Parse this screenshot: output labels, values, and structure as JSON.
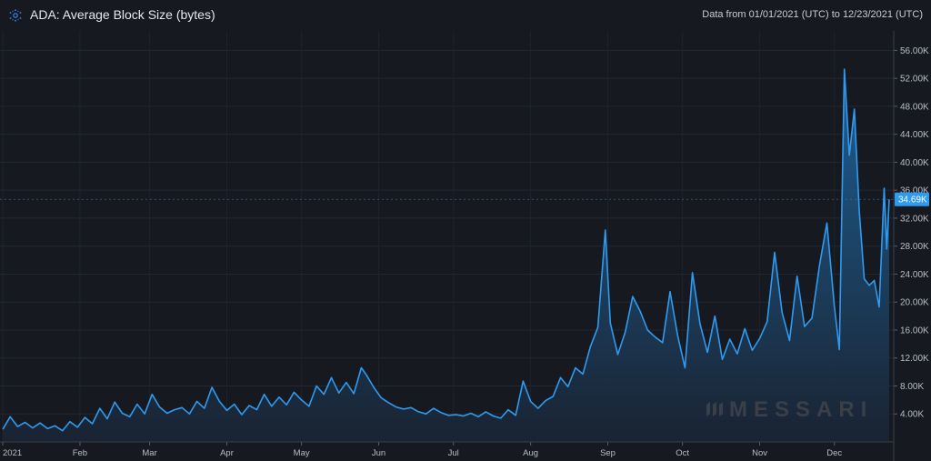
{
  "header": {
    "title": "ADA: Average Block Size (bytes)",
    "date_range": "Data from 01/01/2021 (UTC) to 12/23/2021 (UTC)",
    "logo_icon": "cardano-logo-icon"
  },
  "watermark": {
    "text": "MESSARI",
    "icon": "messari-logo-icon"
  },
  "chart_data": {
    "type": "area",
    "title": "ADA: Average Block Size (bytes)",
    "xlabel": "",
    "ylabel": "",
    "ylim": [
      0,
      58000
    ],
    "xlim": [
      "2021-01-01",
      "2021-12-23"
    ],
    "grid": true,
    "y_axis_position": "right",
    "line_color": "#2f9bf0",
    "fill_color_top": "#1d5f94",
    "fill_color_bottom": "#1a2433",
    "y_ticks": [
      {
        "value": 4000,
        "label": "4.00K"
      },
      {
        "value": 8000,
        "label": "8.00K"
      },
      {
        "value": 12000,
        "label": "12.00K"
      },
      {
        "value": 16000,
        "label": "16.00K"
      },
      {
        "value": 20000,
        "label": "20.00K"
      },
      {
        "value": 24000,
        "label": "24.00K"
      },
      {
        "value": 28000,
        "label": "28.00K"
      },
      {
        "value": 32000,
        "label": "32.00K"
      },
      {
        "value": 36000,
        "label": "36.00K"
      },
      {
        "value": 40000,
        "label": "40.00K"
      },
      {
        "value": 44000,
        "label": "44.00K"
      },
      {
        "value": 48000,
        "label": "48.00K"
      },
      {
        "value": 52000,
        "label": "52.00K"
      },
      {
        "value": 56000,
        "label": "56.00K"
      }
    ],
    "x_ticks": [
      {
        "date": "2021-01-01",
        "label": "2021"
      },
      {
        "date": "2021-02-01",
        "label": "Feb"
      },
      {
        "date": "2021-03-01",
        "label": "Mar"
      },
      {
        "date": "2021-04-01",
        "label": "Apr"
      },
      {
        "date": "2021-05-01",
        "label": "May"
      },
      {
        "date": "2021-06-01",
        "label": "Jun"
      },
      {
        "date": "2021-07-01",
        "label": "Jul"
      },
      {
        "date": "2021-08-01",
        "label": "Aug"
      },
      {
        "date": "2021-09-01",
        "label": "Sep"
      },
      {
        "date": "2021-10-01",
        "label": "Oct"
      },
      {
        "date": "2021-11-01",
        "label": "Nov"
      },
      {
        "date": "2021-12-01",
        "label": "Dec"
      }
    ],
    "last_value": {
      "value": 34690,
      "label": "34.69K"
    },
    "series": [
      {
        "values": [
          [
            "2021-01-01",
            1800
          ],
          [
            "2021-01-04",
            3600
          ],
          [
            "2021-01-07",
            2200
          ],
          [
            "2021-01-10",
            2800
          ],
          [
            "2021-01-13",
            2000
          ],
          [
            "2021-01-16",
            2700
          ],
          [
            "2021-01-19",
            1900
          ],
          [
            "2021-01-22",
            2300
          ],
          [
            "2021-01-25",
            1600
          ],
          [
            "2021-01-28",
            2900
          ],
          [
            "2021-01-31",
            2100
          ],
          [
            "2021-02-03",
            3500
          ],
          [
            "2021-02-06",
            2600
          ],
          [
            "2021-02-09",
            4800
          ],
          [
            "2021-02-12",
            3300
          ],
          [
            "2021-02-15",
            5700
          ],
          [
            "2021-02-18",
            4100
          ],
          [
            "2021-02-21",
            3600
          ],
          [
            "2021-02-24",
            5400
          ],
          [
            "2021-02-27",
            4000
          ],
          [
            "2021-03-02",
            6800
          ],
          [
            "2021-03-05",
            5000
          ],
          [
            "2021-03-08",
            4100
          ],
          [
            "2021-03-11",
            4600
          ],
          [
            "2021-03-14",
            4900
          ],
          [
            "2021-03-17",
            4000
          ],
          [
            "2021-03-20",
            5800
          ],
          [
            "2021-03-23",
            4800
          ],
          [
            "2021-03-26",
            7800
          ],
          [
            "2021-03-29",
            5800
          ],
          [
            "2021-04-01",
            4500
          ],
          [
            "2021-04-04",
            5400
          ],
          [
            "2021-04-07",
            3900
          ],
          [
            "2021-04-10",
            5200
          ],
          [
            "2021-04-13",
            4600
          ],
          [
            "2021-04-16",
            6800
          ],
          [
            "2021-04-19",
            5100
          ],
          [
            "2021-04-22",
            6400
          ],
          [
            "2021-04-25",
            5300
          ],
          [
            "2021-04-28",
            7100
          ],
          [
            "2021-05-01",
            6000
          ],
          [
            "2021-05-04",
            5100
          ],
          [
            "2021-05-07",
            8000
          ],
          [
            "2021-05-10",
            6800
          ],
          [
            "2021-05-13",
            9200
          ],
          [
            "2021-05-16",
            7000
          ],
          [
            "2021-05-19",
            8500
          ],
          [
            "2021-05-22",
            6900
          ],
          [
            "2021-05-25",
            10600
          ],
          [
            "2021-05-27",
            9600
          ],
          [
            "2021-05-30",
            7800
          ],
          [
            "2021-06-02",
            6300
          ],
          [
            "2021-06-05",
            5600
          ],
          [
            "2021-06-08",
            5000
          ],
          [
            "2021-06-11",
            4700
          ],
          [
            "2021-06-14",
            4900
          ],
          [
            "2021-06-17",
            4300
          ],
          [
            "2021-06-20",
            4000
          ],
          [
            "2021-06-23",
            4800
          ],
          [
            "2021-06-26",
            4200
          ],
          [
            "2021-06-29",
            3800
          ],
          [
            "2021-07-02",
            3900
          ],
          [
            "2021-07-05",
            3700
          ],
          [
            "2021-07-08",
            4100
          ],
          [
            "2021-07-11",
            3600
          ],
          [
            "2021-07-14",
            4300
          ],
          [
            "2021-07-17",
            3700
          ],
          [
            "2021-07-20",
            3400
          ],
          [
            "2021-07-23",
            4600
          ],
          [
            "2021-07-26",
            3800
          ],
          [
            "2021-07-29",
            8700
          ],
          [
            "2021-08-01",
            5800
          ],
          [
            "2021-08-04",
            4800
          ],
          [
            "2021-08-07",
            5900
          ],
          [
            "2021-08-10",
            6500
          ],
          [
            "2021-08-13",
            9200
          ],
          [
            "2021-08-16",
            7900
          ],
          [
            "2021-08-19",
            10600
          ],
          [
            "2021-08-22",
            9700
          ],
          [
            "2021-08-25",
            13600
          ],
          [
            "2021-08-28",
            16400
          ],
          [
            "2021-08-31",
            30300
          ],
          [
            "2021-09-02",
            17000
          ],
          [
            "2021-09-05",
            12500
          ],
          [
            "2021-09-08",
            15700
          ],
          [
            "2021-09-11",
            20800
          ],
          [
            "2021-09-14",
            18700
          ],
          [
            "2021-09-17",
            16000
          ],
          [
            "2021-09-20",
            15000
          ],
          [
            "2021-09-23",
            14200
          ],
          [
            "2021-09-26",
            21500
          ],
          [
            "2021-09-29",
            15300
          ],
          [
            "2021-10-02",
            10600
          ],
          [
            "2021-10-05",
            24200
          ],
          [
            "2021-10-08",
            16900
          ],
          [
            "2021-10-11",
            12800
          ],
          [
            "2021-10-14",
            18000
          ],
          [
            "2021-10-17",
            11800
          ],
          [
            "2021-10-20",
            14700
          ],
          [
            "2021-10-23",
            12600
          ],
          [
            "2021-10-26",
            16200
          ],
          [
            "2021-10-29",
            13100
          ],
          [
            "2021-11-01",
            14800
          ],
          [
            "2021-11-04",
            17200
          ],
          [
            "2021-11-07",
            27100
          ],
          [
            "2021-11-10",
            18500
          ],
          [
            "2021-11-13",
            14500
          ],
          [
            "2021-11-16",
            23700
          ],
          [
            "2021-11-19",
            16500
          ],
          [
            "2021-11-22",
            17700
          ],
          [
            "2021-11-25",
            25200
          ],
          [
            "2021-11-28",
            31300
          ],
          [
            "2021-12-01",
            19400
          ],
          [
            "2021-12-03",
            13200
          ],
          [
            "2021-12-05",
            53300
          ],
          [
            "2021-12-07",
            41000
          ],
          [
            "2021-12-09",
            47600
          ],
          [
            "2021-12-11",
            33000
          ],
          [
            "2021-12-13",
            23300
          ],
          [
            "2021-12-15",
            22400
          ],
          [
            "2021-12-17",
            23100
          ],
          [
            "2021-12-19",
            19300
          ],
          [
            "2021-12-21",
            36300
          ],
          [
            "2021-12-22",
            27600
          ],
          [
            "2021-12-23",
            34690
          ]
        ]
      }
    ]
  }
}
